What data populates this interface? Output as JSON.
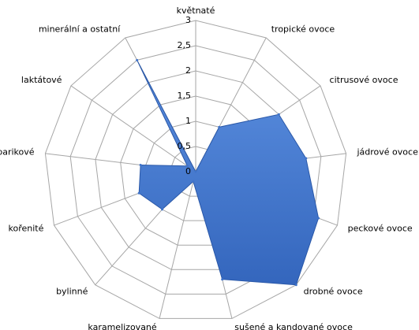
{
  "chart_data": {
    "type": "radar",
    "categories": [
      "květnaté",
      "tropické ovoce",
      "citrusové ovoce",
      "jádrové ovoce",
      "peckové ovoce",
      "drobné ovoce",
      "sušené a kandované ovoce",
      "karamelizované",
      "bylinné",
      "kořenité",
      "barikové",
      "laktátové",
      "minerální a ostatní"
    ],
    "values": [
      0,
      1,
      2,
      2.2,
      2.6,
      3,
      2.2,
      0.2,
      1,
      1.2,
      1.1,
      0.2,
      2.5
    ],
    "color": "#3f73c9",
    "ylim": [
      0,
      3
    ],
    "yticks": [
      0,
      {
        "value": 0.5,
        "label": "0,5"
      },
      1,
      {
        "value": 1.5,
        "label": "1,5"
      },
      2,
      {
        "value": 2.5,
        "label": "2,5"
      },
      3
    ],
    "grid": true
  }
}
